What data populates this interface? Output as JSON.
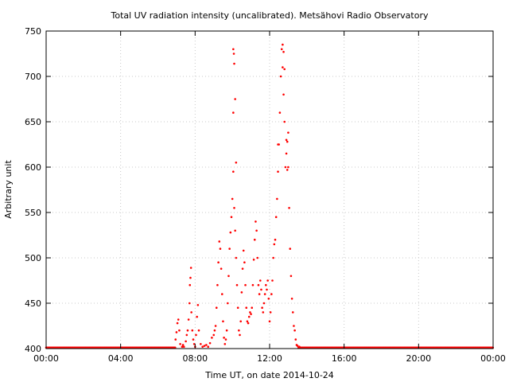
{
  "chart_data": {
    "type": "scatter",
    "title": "Total UV radiation intensity (uncalibrated). Metsähovi Radio Observatory",
    "xlabel": "Time UT, on date 2014-10-24",
    "ylabel": "Arbitrary unit",
    "x_unit": "hours UT",
    "xlim": [
      0,
      24
    ],
    "ylim": [
      400,
      750
    ],
    "x_ticks": [
      {
        "value": 0,
        "label": "00:00"
      },
      {
        "value": 4,
        "label": "04:00"
      },
      {
        "value": 8,
        "label": "08:00"
      },
      {
        "value": 12,
        "label": "12:00"
      },
      {
        "value": 16,
        "label": "16:00"
      },
      {
        "value": 20,
        "label": "20:00"
      },
      {
        "value": 24,
        "label": "00:00"
      }
    ],
    "y_ticks": [
      400,
      450,
      500,
      550,
      600,
      650,
      700,
      750
    ],
    "grid": true,
    "marker_color": "#ff0000",
    "series": [
      {
        "points": [
          [
            6.95,
            410
          ],
          [
            7.0,
            418
          ],
          [
            7.05,
            428
          ],
          [
            7.1,
            432
          ],
          [
            7.15,
            420
          ],
          [
            7.2,
            405
          ],
          [
            7.3,
            402
          ],
          [
            7.35,
            404
          ],
          [
            7.4,
            402
          ],
          [
            7.5,
            408
          ],
          [
            7.55,
            415
          ],
          [
            7.6,
            420
          ],
          [
            7.65,
            432
          ],
          [
            7.7,
            450
          ],
          [
            7.72,
            470
          ],
          [
            7.75,
            478
          ],
          [
            7.78,
            489
          ],
          [
            7.8,
            440
          ],
          [
            7.85,
            420
          ],
          [
            7.9,
            410
          ],
          [
            7.95,
            405
          ],
          [
            8.0,
            402
          ],
          [
            8.05,
            415
          ],
          [
            8.1,
            435
          ],
          [
            8.15,
            448
          ],
          [
            8.2,
            420
          ],
          [
            8.3,
            405
          ],
          [
            8.4,
            402
          ],
          [
            8.5,
            403
          ],
          [
            8.6,
            404
          ],
          [
            8.7,
            402
          ],
          [
            8.8,
            406
          ],
          [
            8.9,
            412
          ],
          [
            9.0,
            415
          ],
          [
            9.05,
            420
          ],
          [
            9.1,
            425
          ],
          [
            9.15,
            445
          ],
          [
            9.2,
            470
          ],
          [
            9.25,
            495
          ],
          [
            9.3,
            518
          ],
          [
            9.35,
            510
          ],
          [
            9.4,
            488
          ],
          [
            9.45,
            460
          ],
          [
            9.5,
            430
          ],
          [
            9.55,
            412
          ],
          [
            9.6,
            405
          ],
          [
            9.65,
            410
          ],
          [
            9.7,
            420
          ],
          [
            9.75,
            450
          ],
          [
            9.8,
            480
          ],
          [
            9.85,
            510
          ],
          [
            9.9,
            528
          ],
          [
            9.95,
            545
          ],
          [
            10.0,
            565
          ],
          [
            10.05,
            595
          ],
          [
            10.1,
            555
          ],
          [
            10.15,
            530
          ],
          [
            10.2,
            500
          ],
          [
            10.25,
            470
          ],
          [
            10.3,
            445
          ],
          [
            10.35,
            420
          ],
          [
            10.4,
            415
          ],
          [
            10.45,
            430
          ],
          [
            10.5,
            462
          ],
          [
            10.55,
            488
          ],
          [
            10.6,
            508
          ],
          [
            10.65,
            495
          ],
          [
            10.7,
            470
          ],
          [
            10.75,
            445
          ],
          [
            10.8,
            430
          ],
          [
            10.85,
            428
          ],
          [
            10.9,
            435
          ],
          [
            10.95,
            440
          ],
          [
            11.0,
            438
          ],
          [
            11.05,
            445
          ],
          [
            11.1,
            470
          ],
          [
            11.15,
            498
          ],
          [
            11.2,
            520
          ],
          [
            11.25,
            540
          ],
          [
            11.3,
            530
          ],
          [
            11.35,
            500
          ],
          [
            11.4,
            470
          ],
          [
            11.45,
            460
          ],
          [
            11.5,
            475
          ],
          [
            11.55,
            465
          ],
          [
            11.6,
            445
          ],
          [
            11.65,
            440
          ],
          [
            11.7,
            450
          ],
          [
            11.75,
            460
          ],
          [
            11.8,
            470
          ],
          [
            11.85,
            465
          ],
          [
            11.9,
            475
          ],
          [
            11.95,
            455
          ],
          [
            12.0,
            430
          ],
          [
            12.05,
            440
          ],
          [
            12.1,
            460
          ],
          [
            12.15,
            475
          ],
          [
            12.2,
            500
          ],
          [
            12.25,
            515
          ],
          [
            12.3,
            520
          ],
          [
            12.35,
            545
          ],
          [
            12.4,
            565
          ],
          [
            12.45,
            595
          ],
          [
            12.5,
            625
          ],
          [
            12.55,
            660
          ],
          [
            12.6,
            700
          ],
          [
            12.65,
            730
          ],
          [
            12.7,
            710
          ],
          [
            12.75,
            680
          ],
          [
            12.8,
            650
          ],
          [
            12.85,
            600
          ],
          [
            12.9,
            615
          ],
          [
            12.95,
            628
          ],
          [
            13.0,
            600
          ],
          [
            13.05,
            555
          ],
          [
            13.1,
            510
          ],
          [
            13.15,
            480
          ],
          [
            13.2,
            455
          ],
          [
            13.25,
            440
          ],
          [
            13.3,
            425
          ],
          [
            13.35,
            420
          ],
          [
            13.4,
            410
          ],
          [
            13.45,
            404
          ],
          [
            13.5,
            403
          ],
          [
            13.6,
            402
          ],
          [
            10.05,
            730
          ],
          [
            10.08,
            725
          ],
          [
            10.1,
            714
          ],
          [
            10.15,
            675
          ],
          [
            10.05,
            660
          ],
          [
            10.2,
            605
          ],
          [
            12.45,
            625
          ],
          [
            12.7,
            735
          ],
          [
            12.75,
            727
          ],
          [
            12.8,
            708
          ],
          [
            12.9,
            630
          ],
          [
            13.0,
            638
          ],
          [
            12.95,
            597
          ]
        ]
      }
    ]
  }
}
